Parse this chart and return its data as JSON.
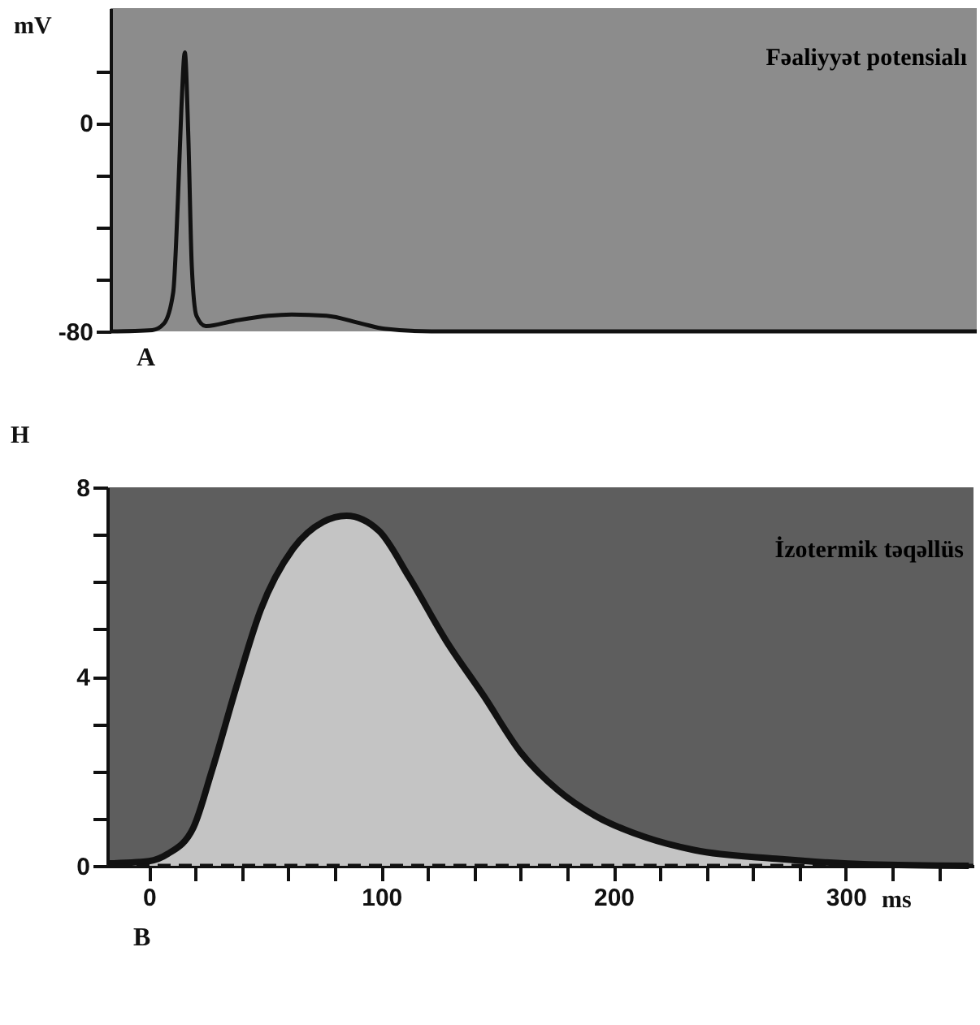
{
  "chart_data": [
    {
      "type": "line",
      "title": "Fəaliyyət potensialı",
      "ylabel": "mV",
      "annotations": [
        "A"
      ],
      "tick_labels": "y",
      "grid": false,
      "xlim": [
        -18,
        355
      ],
      "ylim": [
        -80,
        44
      ],
      "yticks": [
        -80,
        {
          "value": -60,
          "label": null
        },
        {
          "value": -40,
          "label": null
        },
        {
          "value": -20,
          "label": null
        },
        0,
        {
          "value": 20,
          "label": null
        }
      ],
      "series": [
        {
          "color": "#111111",
          "x": [
            -18,
            0,
            5,
            9,
            11,
            12.5,
            14,
            15.5,
            17,
            19,
            23,
            35,
            50,
            60,
            75,
            90,
            100,
            120,
            200,
            355
          ],
          "values": [
            -80,
            -79.5,
            -77,
            -65,
            -30,
            5,
            27,
            -5,
            -55,
            -74,
            -78,
            -76,
            -74,
            -73.5,
            -74,
            -77,
            -79,
            -80,
            -80,
            -80
          ]
        }
      ]
    },
    {
      "type": "area",
      "title": "İzotermik təqəllüs",
      "ylabel": "H",
      "xlabel": "ms",
      "annotations": [
        "B"
      ],
      "grid": false,
      "xlim": [
        -18,
        355
      ],
      "ylim": [
        0,
        8
      ],
      "xticks": [
        0,
        {
          "value": 20,
          "label": null
        },
        {
          "value": 40,
          "label": null
        },
        {
          "value": 60,
          "label": null
        },
        {
          "value": 80,
          "label": null
        },
        100,
        {
          "value": 120,
          "label": null
        },
        {
          "value": 140,
          "label": null
        },
        {
          "value": 160,
          "label": null
        },
        {
          "value": 180,
          "label": null
        },
        200,
        {
          "value": 220,
          "label": null
        },
        {
          "value": 240,
          "label": null
        },
        {
          "value": 260,
          "label": null
        },
        {
          "value": 280,
          "label": null
        },
        300,
        {
          "value": 320,
          "label": null
        },
        {
          "value": 340,
          "label": null
        }
      ],
      "yticks": [
        0,
        {
          "value": 1,
          "label": null
        },
        {
          "value": 2,
          "label": null
        },
        {
          "value": 3,
          "label": null
        },
        4,
        {
          "value": 5,
          "label": null
        },
        {
          "value": 6,
          "label": null
        },
        {
          "value": 7,
          "label": null
        },
        8
      ],
      "ref_lines": [
        {
          "axis": "y",
          "value": 0,
          "line_style": "dashed",
          "color": "#111111"
        }
      ],
      "series": [
        {
          "color": "#c4c4c4",
          "x": [
            -18,
            0,
            8,
            19,
            27,
            38,
            48,
            62,
            75,
            85,
            99,
            112,
            128,
            144,
            160,
            176,
            192,
            214,
            235,
            270,
            310,
            353
          ],
          "values": [
            0.05,
            0.1,
            0.25,
            0.8,
            2.0,
            3.85,
            5.4,
            6.7,
            7.27,
            7.4,
            7.08,
            6.1,
            4.75,
            3.6,
            2.4,
            1.6,
            1.06,
            0.6,
            0.33,
            0.15,
            0.03,
            0
          ]
        }
      ]
    }
  ]
}
